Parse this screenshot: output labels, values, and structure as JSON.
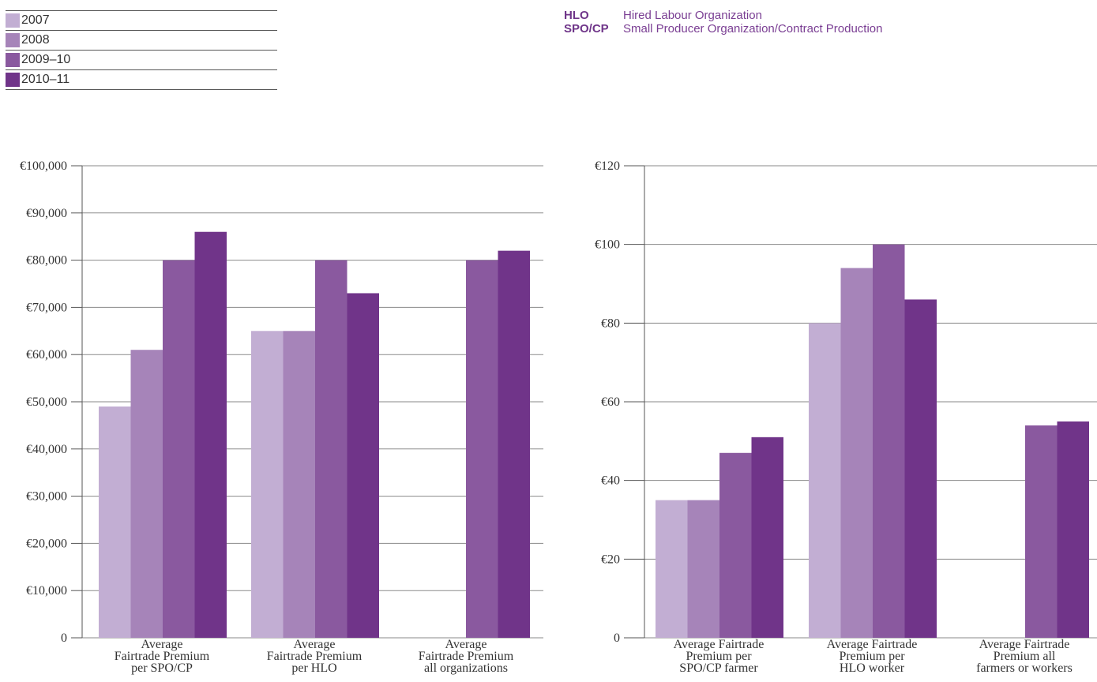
{
  "legend": {
    "items": [
      {
        "label": "2007",
        "color": "#c2aed3"
      },
      {
        "label": "2008",
        "color": "#a684b9"
      },
      {
        "label": "2009–10",
        "color": "#8a599f"
      },
      {
        "label": "2010–11",
        "color": "#703489"
      }
    ]
  },
  "abbreviations": [
    {
      "key": "HLO",
      "value": "Hired Labour Organization"
    },
    {
      "key": "SPO/CP",
      "value": "Small Producer Organization/Contract Production"
    }
  ],
  "chart_data": [
    {
      "type": "bar",
      "categories": [
        [
          "Average",
          "Fairtrade Premium",
          "per SPO/CP"
        ],
        [
          "Average",
          "Fairtrade Premium",
          "per HLO"
        ],
        [
          "Average",
          "Fairtrade Premium",
          "all organizations"
        ]
      ],
      "series": [
        {
          "name": "2007",
          "values": [
            49000,
            65000,
            null
          ]
        },
        {
          "name": "2008",
          "values": [
            61000,
            65000,
            null
          ]
        },
        {
          "name": "2009–10",
          "values": [
            80000,
            80000,
            80000
          ]
        },
        {
          "name": "2010–11",
          "values": [
            86000,
            73000,
            82000
          ]
        }
      ],
      "ylim": [
        0,
        100000
      ],
      "yticks": [
        0,
        10000,
        20000,
        30000,
        40000,
        50000,
        60000,
        70000,
        80000,
        90000,
        100000
      ],
      "ytick_labels": [
        "0",
        "€10,000",
        "€20,000",
        "€30,000",
        "€40,000",
        "€50,000",
        "€60,000",
        "€70,000",
        "€80,000",
        "€90,000",
        "€100,000"
      ],
      "grid": true,
      "xlabel": "",
      "ylabel": ""
    },
    {
      "type": "bar",
      "categories": [
        [
          "Average Fairtrade",
          "Premium per",
          "SPO/CP farmer"
        ],
        [
          "Average Fairtrade",
          "Premium per",
          "HLO worker"
        ],
        [
          "Average Fairtrade",
          "Premium all",
          "farmers or workers"
        ]
      ],
      "series": [
        {
          "name": "2007",
          "values": [
            35,
            80,
            null
          ]
        },
        {
          "name": "2008",
          "values": [
            35,
            94,
            null
          ]
        },
        {
          "name": "2009–10",
          "values": [
            47,
            100,
            54
          ]
        },
        {
          "name": "2010–11",
          "values": [
            51,
            86,
            55
          ]
        }
      ],
      "ylim": [
        0,
        120
      ],
      "yticks": [
        0,
        20,
        40,
        60,
        80,
        100,
        120
      ],
      "ytick_labels": [
        "0",
        "€20",
        "€40",
        "€60",
        "€80",
        "€100",
        "€120"
      ],
      "grid": true,
      "xlabel": "",
      "ylabel": ""
    }
  ]
}
